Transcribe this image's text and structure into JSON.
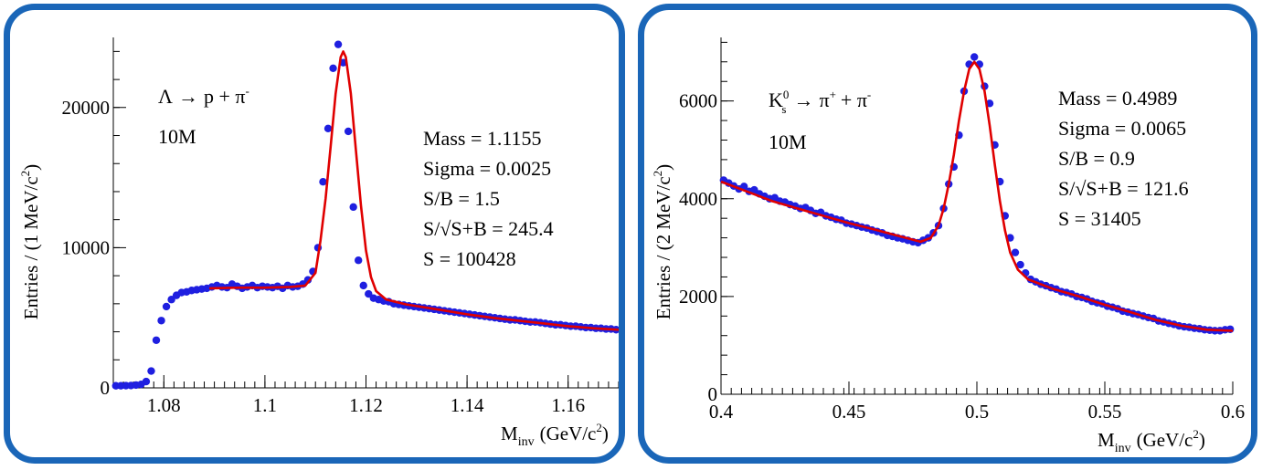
{
  "chart_data": [
    {
      "type": "scatter",
      "reaction": {
        "lhs": "Λ",
        "arrow": "→",
        "rhs": "p + π",
        "rhs_sup": "-"
      },
      "sample": "10M",
      "stats": [
        "Mass = 1.1155",
        "Sigma = 0.0025",
        "S/B = 1.5",
        "S/√S+B = 245.4",
        "S = 100428"
      ],
      "xlabel": {
        "main": "M",
        "sub": "inv",
        "unit": "(GeV/c",
        "unit_sup": "2",
        "close": ")"
      },
      "ylabel": {
        "main": "Entries / (1 MeV/c",
        "sup": "2",
        "close": ")"
      },
      "xlim": [
        1.07,
        1.17
      ],
      "ylim": [
        0,
        25000
      ],
      "xticks": [
        1.08,
        1.1,
        1.12,
        1.14,
        1.16
      ],
      "xtick_labels": [
        "1.08",
        "1.1",
        "1.12",
        "1.14",
        "1.16"
      ],
      "yticks": [
        0,
        10000,
        20000
      ],
      "ytick_labels": [
        "0",
        "10000",
        "20000"
      ],
      "colors": {
        "points": "#1f1fe0",
        "fit": "#e00000",
        "frame": "#1a66b8"
      },
      "points": [
        [
          1.0705,
          150
        ],
        [
          1.0715,
          150
        ],
        [
          1.0725,
          160
        ],
        [
          1.0735,
          170
        ],
        [
          1.0745,
          200
        ],
        [
          1.0755,
          250
        ],
        [
          1.0765,
          450
        ],
        [
          1.0775,
          1200
        ],
        [
          1.0785,
          3400
        ],
        [
          1.0795,
          4800
        ],
        [
          1.0805,
          5800
        ],
        [
          1.0815,
          6300
        ],
        [
          1.0825,
          6600
        ],
        [
          1.0835,
          6800
        ],
        [
          1.0845,
          6850
        ],
        [
          1.0855,
          6950
        ],
        [
          1.0865,
          7000
        ],
        [
          1.0875,
          7050
        ],
        [
          1.0885,
          7100
        ],
        [
          1.0895,
          7200
        ],
        [
          1.0905,
          7300
        ],
        [
          1.0915,
          7200
        ],
        [
          1.0925,
          7150
        ],
        [
          1.0935,
          7400
        ],
        [
          1.0945,
          7250
        ],
        [
          1.0955,
          7100
        ],
        [
          1.0965,
          7200
        ],
        [
          1.0975,
          7300
        ],
        [
          1.0985,
          7150
        ],
        [
          1.0995,
          7250
        ],
        [
          1.1005,
          7200
        ],
        [
          1.1015,
          7150
        ],
        [
          1.1025,
          7250
        ],
        [
          1.1035,
          7100
        ],
        [
          1.1045,
          7300
        ],
        [
          1.1055,
          7200
        ],
        [
          1.1065,
          7250
        ],
        [
          1.1075,
          7400
        ],
        [
          1.1085,
          7700
        ],
        [
          1.1095,
          8300
        ],
        [
          1.1105,
          10000
        ],
        [
          1.1115,
          14700
        ],
        [
          1.1125,
          18500
        ],
        [
          1.1135,
          22800
        ],
        [
          1.1145,
          24500
        ],
        [
          1.1155,
          23200
        ],
        [
          1.1165,
          18300
        ],
        [
          1.1175,
          12900
        ],
        [
          1.1185,
          9100
        ],
        [
          1.1195,
          7300
        ],
        [
          1.1205,
          6700
        ],
        [
          1.1215,
          6400
        ],
        [
          1.1225,
          6300
        ],
        [
          1.1235,
          6200
        ],
        [
          1.1245,
          6150
        ],
        [
          1.1255,
          6000
        ],
        [
          1.1265,
          5950
        ],
        [
          1.1275,
          5900
        ],
        [
          1.1285,
          5850
        ],
        [
          1.1295,
          5800
        ],
        [
          1.1305,
          5750
        ],
        [
          1.1315,
          5700
        ],
        [
          1.1325,
          5650
        ],
        [
          1.1335,
          5600
        ],
        [
          1.1345,
          5550
        ],
        [
          1.1355,
          5500
        ],
        [
          1.1365,
          5450
        ],
        [
          1.1375,
          5400
        ],
        [
          1.1385,
          5350
        ],
        [
          1.1395,
          5300
        ],
        [
          1.1405,
          5250
        ],
        [
          1.1415,
          5200
        ],
        [
          1.1425,
          5150
        ],
        [
          1.1435,
          5100
        ],
        [
          1.1445,
          5050
        ],
        [
          1.1455,
          5000
        ],
        [
          1.1465,
          4950
        ],
        [
          1.1475,
          4900
        ],
        [
          1.1485,
          4850
        ],
        [
          1.1495,
          4850
        ],
        [
          1.1505,
          4800
        ],
        [
          1.1515,
          4750
        ],
        [
          1.1525,
          4700
        ],
        [
          1.1535,
          4700
        ],
        [
          1.1545,
          4650
        ],
        [
          1.1555,
          4600
        ],
        [
          1.1565,
          4550
        ],
        [
          1.1575,
          4500
        ],
        [
          1.1585,
          4500
        ],
        [
          1.1595,
          4450
        ],
        [
          1.1605,
          4400
        ],
        [
          1.1615,
          4400
        ],
        [
          1.1625,
          4350
        ],
        [
          1.1635,
          4300
        ],
        [
          1.1645,
          4300
        ],
        [
          1.1655,
          4250
        ],
        [
          1.1665,
          4250
        ],
        [
          1.1675,
          4200
        ],
        [
          1.1685,
          4200
        ],
        [
          1.1695,
          4150
        ]
      ],
      "fit": [
        [
          1.089,
          7100
        ],
        [
          1.095,
          7150
        ],
        [
          1.1,
          7150
        ],
        [
          1.105,
          7200
        ],
        [
          1.108,
          7300
        ],
        [
          1.11,
          8200
        ],
        [
          1.111,
          10500
        ],
        [
          1.112,
          13500
        ],
        [
          1.113,
          17200
        ],
        [
          1.114,
          21000
        ],
        [
          1.115,
          23600
        ],
        [
          1.1155,
          24000
        ],
        [
          1.116,
          23600
        ],
        [
          1.117,
          21000
        ],
        [
          1.118,
          17000
        ],
        [
          1.119,
          13000
        ],
        [
          1.12,
          9800
        ],
        [
          1.121,
          7900
        ],
        [
          1.122,
          6900
        ],
        [
          1.124,
          6300
        ],
        [
          1.128,
          5950
        ],
        [
          1.135,
          5550
        ],
        [
          1.14,
          5250
        ],
        [
          1.145,
          5000
        ],
        [
          1.15,
          4800
        ],
        [
          1.155,
          4600
        ],
        [
          1.16,
          4400
        ],
        [
          1.165,
          4250
        ],
        [
          1.17,
          4150
        ]
      ]
    },
    {
      "type": "scatter",
      "reaction": {
        "lhs": "K",
        "lhs_sup": "0",
        "lhs_sub": "s",
        "arrow": "→",
        "rhs": "π",
        "rhs_sup": "+",
        "rhs2": "+ π",
        "rhs2_sup": "-"
      },
      "sample": "10M",
      "stats": [
        "Mass = 0.4989",
        "Sigma = 0.0065",
        "S/B = 0.9",
        "S/√S+B = 121.6",
        "S = 31405"
      ],
      "xlabel": {
        "main": "M",
        "sub": "inv",
        "unit": "(GeV/c",
        "unit_sup": "2",
        "close": ")"
      },
      "ylabel": {
        "main": "Entries / (2 MeV/c",
        "sup": "2",
        "close": ")"
      },
      "xlim": [
        0.4,
        0.6
      ],
      "ylim": [
        0,
        7300
      ],
      "xticks": [
        0.4,
        0.45,
        0.5,
        0.55,
        0.6
      ],
      "xtick_labels": [
        "0.4",
        "0.45",
        "0.5",
        "0.55",
        "0.6"
      ],
      "yticks": [
        0,
        2000,
        4000,
        6000
      ],
      "ytick_labels": [
        "0",
        "2000",
        "4000",
        "6000"
      ],
      "colors": {
        "points": "#1f1fe0",
        "fit": "#e00000",
        "frame": "#1a66b8"
      },
      "points": [
        [
          0.401,
          4380
        ],
        [
          0.403,
          4320
        ],
        [
          0.405,
          4260
        ],
        [
          0.407,
          4200
        ],
        [
          0.409,
          4250
        ],
        [
          0.411,
          4150
        ],
        [
          0.413,
          4180
        ],
        [
          0.415,
          4100
        ],
        [
          0.417,
          4050
        ],
        [
          0.419,
          4000
        ],
        [
          0.421,
          4020
        ],
        [
          0.423,
          3950
        ],
        [
          0.425,
          3930
        ],
        [
          0.427,
          3880
        ],
        [
          0.429,
          3850
        ],
        [
          0.431,
          3800
        ],
        [
          0.433,
          3820
        ],
        [
          0.435,
          3760
        ],
        [
          0.437,
          3700
        ],
        [
          0.439,
          3720
        ],
        [
          0.441,
          3650
        ],
        [
          0.443,
          3620
        ],
        [
          0.445,
          3580
        ],
        [
          0.447,
          3560
        ],
        [
          0.449,
          3500
        ],
        [
          0.451,
          3480
        ],
        [
          0.453,
          3450
        ],
        [
          0.455,
          3420
        ],
        [
          0.457,
          3400
        ],
        [
          0.459,
          3360
        ],
        [
          0.461,
          3330
        ],
        [
          0.463,
          3300
        ],
        [
          0.465,
          3250
        ],
        [
          0.467,
          3230
        ],
        [
          0.469,
          3200
        ],
        [
          0.471,
          3180
        ],
        [
          0.473,
          3150
        ],
        [
          0.475,
          3120
        ],
        [
          0.477,
          3100
        ],
        [
          0.479,
          3150
        ],
        [
          0.481,
          3200
        ],
        [
          0.483,
          3300
        ],
        [
          0.485,
          3450
        ],
        [
          0.487,
          3800
        ],
        [
          0.489,
          4300
        ],
        [
          0.491,
          4650
        ],
        [
          0.493,
          5300
        ],
        [
          0.495,
          6200
        ],
        [
          0.497,
          6750
        ],
        [
          0.499,
          6900
        ],
        [
          0.501,
          6750
        ],
        [
          0.503,
          6300
        ],
        [
          0.505,
          5950
        ],
        [
          0.507,
          5100
        ],
        [
          0.509,
          4350
        ],
        [
          0.511,
          3650
        ],
        [
          0.513,
          3200
        ],
        [
          0.515,
          2900
        ],
        [
          0.517,
          2650
        ],
        [
          0.519,
          2480
        ],
        [
          0.521,
          2350
        ],
        [
          0.523,
          2300
        ],
        [
          0.525,
          2250
        ],
        [
          0.527,
          2220
        ],
        [
          0.529,
          2180
        ],
        [
          0.531,
          2150
        ],
        [
          0.533,
          2100
        ],
        [
          0.535,
          2080
        ],
        [
          0.537,
          2050
        ],
        [
          0.539,
          2000
        ],
        [
          0.541,
          1980
        ],
        [
          0.543,
          1950
        ],
        [
          0.545,
          1900
        ],
        [
          0.547,
          1870
        ],
        [
          0.549,
          1850
        ],
        [
          0.551,
          1800
        ],
        [
          0.553,
          1780
        ],
        [
          0.555,
          1750
        ],
        [
          0.557,
          1700
        ],
        [
          0.559,
          1680
        ],
        [
          0.561,
          1650
        ],
        [
          0.563,
          1630
        ],
        [
          0.565,
          1600
        ],
        [
          0.567,
          1570
        ],
        [
          0.569,
          1550
        ],
        [
          0.571,
          1500
        ],
        [
          0.573,
          1480
        ],
        [
          0.575,
          1450
        ],
        [
          0.577,
          1430
        ],
        [
          0.579,
          1400
        ],
        [
          0.581,
          1380
        ],
        [
          0.583,
          1370
        ],
        [
          0.585,
          1350
        ],
        [
          0.587,
          1340
        ],
        [
          0.589,
          1320
        ],
        [
          0.591,
          1310
        ],
        [
          0.593,
          1300
        ],
        [
          0.595,
          1300
        ],
        [
          0.597,
          1320
        ],
        [
          0.599,
          1330
        ]
      ],
      "fit": [
        [
          0.4,
          4350
        ],
        [
          0.41,
          4150
        ],
        [
          0.42,
          3950
        ],
        [
          0.43,
          3800
        ],
        [
          0.44,
          3650
        ],
        [
          0.45,
          3500
        ],
        [
          0.46,
          3370
        ],
        [
          0.47,
          3230
        ],
        [
          0.478,
          3120
        ],
        [
          0.482,
          3200
        ],
        [
          0.485,
          3450
        ],
        [
          0.487,
          3800
        ],
        [
          0.489,
          4300
        ],
        [
          0.491,
          4900
        ],
        [
          0.493,
          5600
        ],
        [
          0.495,
          6200
        ],
        [
          0.497,
          6650
        ],
        [
          0.499,
          6800
        ],
        [
          0.501,
          6650
        ],
        [
          0.503,
          6200
        ],
        [
          0.505,
          5500
        ],
        [
          0.507,
          4700
        ],
        [
          0.509,
          3950
        ],
        [
          0.511,
          3350
        ],
        [
          0.513,
          2900
        ],
        [
          0.516,
          2550
        ],
        [
          0.52,
          2350
        ],
        [
          0.53,
          2150
        ],
        [
          0.54,
          2000
        ],
        [
          0.55,
          1830
        ],
        [
          0.56,
          1680
        ],
        [
          0.57,
          1520
        ],
        [
          0.58,
          1400
        ],
        [
          0.59,
          1320
        ],
        [
          0.6,
          1300
        ]
      ]
    }
  ]
}
